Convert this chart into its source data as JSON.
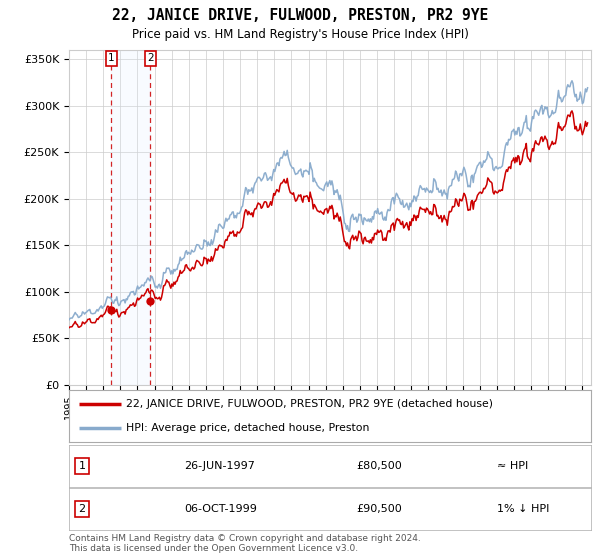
{
  "title": "22, JANICE DRIVE, FULWOOD, PRESTON, PR2 9YE",
  "subtitle": "Price paid vs. HM Land Registry's House Price Index (HPI)",
  "ylim": [
    0,
    360000
  ],
  "yticks": [
    0,
    50000,
    100000,
    150000,
    200000,
    250000,
    300000,
    350000
  ],
  "ytick_labels": [
    "£0",
    "£50K",
    "£100K",
    "£150K",
    "£200K",
    "£250K",
    "£300K",
    "£350K"
  ],
  "sale1_date": 1997.48,
  "sale1_price": 80500,
  "sale1_display": "26-JUN-1997",
  "sale1_note": "≈ HPI",
  "sale2_date": 1999.76,
  "sale2_price": 90500,
  "sale2_display": "06-OCT-1999",
  "sale2_note": "1% ↓ HPI",
  "line_color_property": "#cc0000",
  "line_color_hpi": "#88aacc",
  "vline_color": "#cc0000",
  "span_color": "#ddeeff",
  "legend_label_property": "22, JANICE DRIVE, FULWOOD, PRESTON, PR2 9YE (detached house)",
  "legend_label_hpi": "HPI: Average price, detached house, Preston",
  "footer": "Contains HM Land Registry data © Crown copyright and database right 2024.\nThis data is licensed under the Open Government Licence v3.0.",
  "background_color": "#ffffff",
  "grid_color": "#cccccc",
  "xlim_start": 1995,
  "xlim_end": 2025.5
}
